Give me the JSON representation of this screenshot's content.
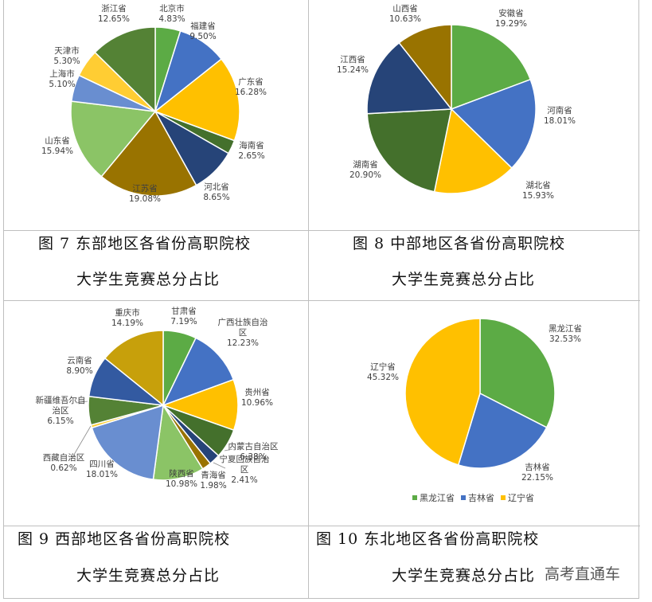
{
  "chart_data": [
    {
      "type": "pie",
      "slices": [
        {
          "label": "北京市",
          "value": 4.83,
          "value_text": "4.83%",
          "color": "#5cab45"
        },
        {
          "label": "福建省",
          "value": 9.5,
          "value_text": "9.50%",
          "color": "#4472c4"
        },
        {
          "label": "广东省",
          "value": 16.28,
          "value_text": "16.28%",
          "color": "#ffc000"
        },
        {
          "label": "海南省",
          "value": 2.65,
          "value_text": "2.65%",
          "color": "#44702c"
        },
        {
          "label": "河北省",
          "value": 8.65,
          "value_text": "8.65%",
          "color": "#264478"
        },
        {
          "label": "江苏省",
          "value": 19.08,
          "value_text": "19.08%",
          "color": "#997300"
        },
        {
          "label": "山东省",
          "value": 15.94,
          "value_text": "15.94%",
          "color": "#8bc466"
        },
        {
          "label": "上海市",
          "value": 5.1,
          "value_text": "5.10%",
          "color": "#698ed0"
        },
        {
          "label": "天津市",
          "value": 5.3,
          "value_text": "5.30%",
          "color": "#ffcd33"
        },
        {
          "label": "浙江省",
          "value": 12.65,
          "value_text": "12.65%",
          "color": "#548235"
        }
      ]
    },
    {
      "type": "pie",
      "slices": [
        {
          "label": "安徽省",
          "value": 19.29,
          "value_text": "19.29%",
          "color": "#5cab45"
        },
        {
          "label": "河南省",
          "value": 18.01,
          "value_text": "18.01%",
          "color": "#4472c4"
        },
        {
          "label": "湖北省",
          "value": 15.93,
          "value_text": "15.93%",
          "color": "#ffc000"
        },
        {
          "label": "湖南省",
          "value": 20.9,
          "value_text": "20.90%",
          "color": "#44702c"
        },
        {
          "label": "江西省",
          "value": 15.24,
          "value_text": "15.24%",
          "color": "#264478"
        },
        {
          "label": "山西省",
          "value": 10.63,
          "value_text": "10.63%",
          "color": "#997300"
        }
      ]
    },
    {
      "type": "pie",
      "slices": [
        {
          "label": "甘肃省",
          "value": 7.19,
          "value_text": "7.19%",
          "color": "#5cab45"
        },
        {
          "label": "广西壮族自治区",
          "value": 12.23,
          "value_text": "12.23%",
          "color": "#4472c4"
        },
        {
          "label": "贵州省",
          "value": 10.96,
          "value_text": "10.96%",
          "color": "#ffc000"
        },
        {
          "label": "内蒙古自治区",
          "value": 6.38,
          "value_text": "6.38%",
          "color": "#44702c"
        },
        {
          "label": "宁夏回族自治区",
          "value": 2.41,
          "value_text": "2.41%",
          "color": "#264478"
        },
        {
          "label": "青海省",
          "value": 1.98,
          "value_text": "1.98%",
          "color": "#997300"
        },
        {
          "label": "陕西省",
          "value": 10.98,
          "value_text": "10.98%",
          "color": "#8bc466"
        },
        {
          "label": "四川省",
          "value": 18.01,
          "value_text": "18.01%",
          "color": "#698ed0"
        },
        {
          "label": "西藏自治区",
          "value": 0.62,
          "value_text": "0.62%",
          "color": "#ffcd33"
        },
        {
          "label": "新疆维吾尔自治区",
          "value": 6.15,
          "value_text": "6.15%",
          "color": "#548235"
        },
        {
          "label": "云南省",
          "value": 8.9,
          "value_text": "8.90%",
          "color": "#335aa1"
        },
        {
          "label": "重庆市",
          "value": 14.19,
          "value_text": "14.19%",
          "color": "#c7a00b"
        }
      ]
    },
    {
      "type": "pie",
      "slices": [
        {
          "label": "黑龙江省",
          "value": 32.53,
          "value_text": "32.53%",
          "color": "#5cab45"
        },
        {
          "label": "吉林省",
          "value": 22.15,
          "value_text": "22.15%",
          "color": "#4472c4"
        },
        {
          "label": "辽宁省",
          "value": 45.32,
          "value_text": "45.32%",
          "color": "#ffc000"
        }
      ],
      "legend": [
        "黑龙江省",
        "吉林省",
        "辽宁省"
      ],
      "legend_position": "bottom"
    }
  ],
  "captions": [
    {
      "line1": "图 7 东部地区各省份高职院校",
      "line2": "大学生竞赛总分占比"
    },
    {
      "line1": "图 8 中部地区各省份高职院校",
      "line2": "大学生竞赛总分占比"
    },
    {
      "line1": "图 9 西部地区各省份高职院校",
      "line2": "大学生竞赛总分占比"
    },
    {
      "line1": "图 10 东北地区各省份高职院校",
      "line2": "大学生竞赛总分占比"
    }
  ],
  "watermark": "高考直通车"
}
